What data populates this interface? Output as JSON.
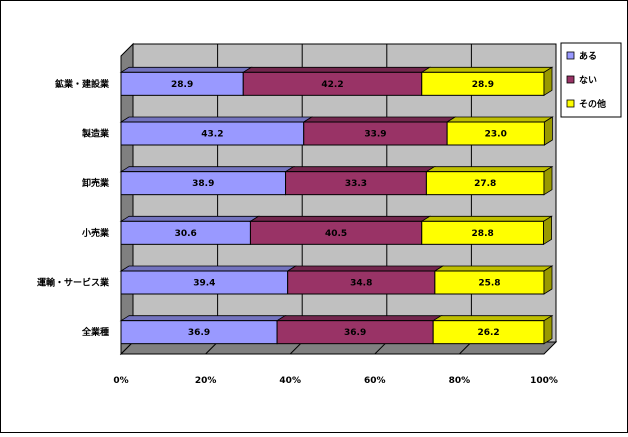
{
  "chart_data": {
    "type": "bar",
    "stacked": true,
    "orientation": "horizontal",
    "three_d": true,
    "categories": [
      "鉱業・建設業",
      "製造業",
      "卸売業",
      "小売業",
      "運輸・サービス業",
      "全業種"
    ],
    "series": [
      {
        "name": "ある",
        "color": "#9999FF",
        "values": [
          28.9,
          43.2,
          38.9,
          30.6,
          39.4,
          36.9
        ]
      },
      {
        "name": "ない",
        "color": "#993366",
        "values": [
          42.2,
          33.9,
          33.3,
          40.5,
          34.8,
          36.9
        ]
      },
      {
        "name": "その他",
        "color": "#FFFF00",
        "values": [
          28.9,
          23.0,
          27.8,
          28.8,
          25.8,
          26.2
        ]
      }
    ],
    "x_ticks": [
      "0%",
      "20%",
      "40%",
      "60%",
      "80%",
      "100%"
    ],
    "xlim": [
      0,
      100
    ],
    "grid": true,
    "legend_position": "right",
    "wall_color": "#C0C0C0",
    "floor_color": "#808080"
  }
}
